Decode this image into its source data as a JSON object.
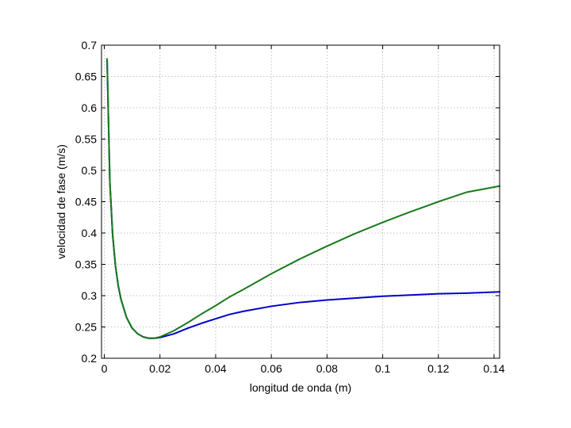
{
  "chart_data": {
    "type": "line",
    "xlabel": "longitud de onda (m)",
    "ylabel": "velocidad de fase (m/s)",
    "xlim": [
      -0.001,
      0.142
    ],
    "ylim": [
      0.2,
      0.7
    ],
    "xticks": [
      0,
      0.02,
      0.04,
      0.06,
      0.08,
      0.1,
      0.12,
      0.14
    ],
    "xtick_labels": [
      "0",
      "0.02",
      "0.04",
      "0.06",
      "0.08",
      "0.1",
      "0.12",
      "0.14"
    ],
    "yticks": [
      0.2,
      0.25,
      0.3,
      0.35,
      0.4,
      0.45,
      0.5,
      0.55,
      0.6,
      0.65,
      0.7
    ],
    "ytick_labels": [
      "0.2",
      "0.25",
      "0.3",
      "0.35",
      "0.4",
      "0.45",
      "0.5",
      "0.55",
      "0.6",
      "0.65",
      "0.7"
    ],
    "grid": true,
    "series": [
      {
        "color": "#0000cc",
        "x": [
          0.001,
          0.002,
          0.003,
          0.004,
          0.005,
          0.006,
          0.008,
          0.01,
          0.012,
          0.014,
          0.016,
          0.018,
          0.02,
          0.025,
          0.03,
          0.035,
          0.04,
          0.045,
          0.05,
          0.06,
          0.07,
          0.08,
          0.09,
          0.1,
          0.11,
          0.12,
          0.13,
          0.142
        ],
        "y": [
          0.678,
          0.481,
          0.397,
          0.348,
          0.316,
          0.294,
          0.265,
          0.248,
          0.239,
          0.234,
          0.232,
          0.232,
          0.233,
          0.239,
          0.248,
          0.256,
          0.263,
          0.27,
          0.275,
          0.283,
          0.289,
          0.293,
          0.296,
          0.299,
          0.301,
          0.303,
          0.304,
          0.306
        ]
      },
      {
        "color": "#1a7a1a",
        "x": [
          0.001,
          0.002,
          0.003,
          0.004,
          0.005,
          0.006,
          0.008,
          0.01,
          0.012,
          0.014,
          0.016,
          0.018,
          0.02,
          0.025,
          0.03,
          0.035,
          0.04,
          0.045,
          0.05,
          0.06,
          0.07,
          0.08,
          0.09,
          0.1,
          0.11,
          0.12,
          0.13,
          0.142
        ],
        "y": [
          0.678,
          0.481,
          0.397,
          0.348,
          0.316,
          0.294,
          0.265,
          0.248,
          0.239,
          0.234,
          0.232,
          0.232,
          0.234,
          0.244,
          0.257,
          0.271,
          0.284,
          0.298,
          0.31,
          0.335,
          0.358,
          0.379,
          0.399,
          0.417,
          0.434,
          0.45,
          0.465,
          0.475
        ]
      }
    ]
  }
}
